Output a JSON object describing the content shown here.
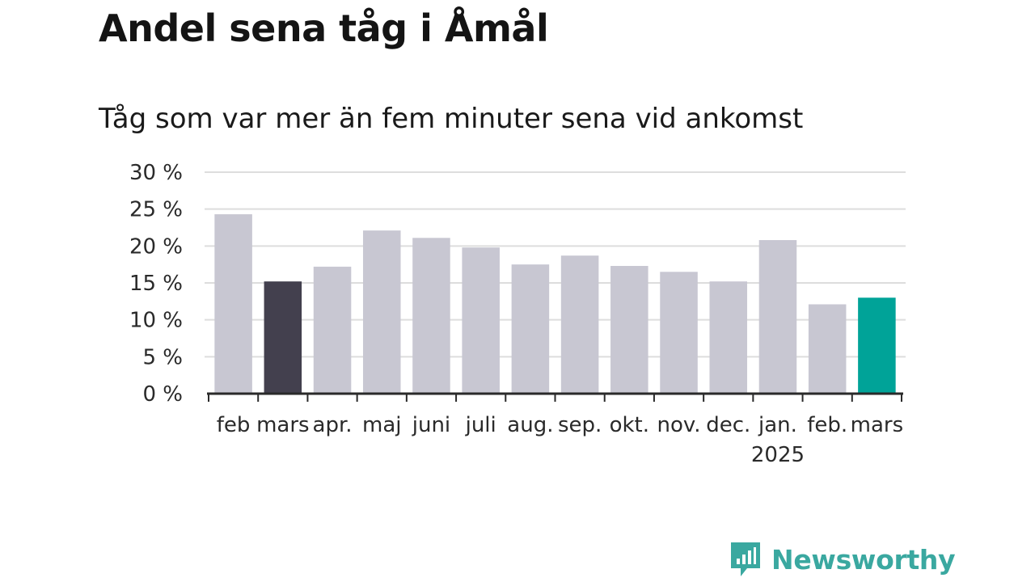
{
  "title": "Andel sena tåg i Åmål",
  "subtitle": "Tåg som var mer än fem minuter sena vid ankomst",
  "brand": {
    "name": "Newsworthy",
    "icon": "newsworthy-logo-icon",
    "color": "#3aa8a0"
  },
  "chart_data": {
    "type": "bar",
    "y_ticks": [
      "0 %",
      "5 %",
      "10 %",
      "15 %",
      "20 %",
      "25 %",
      "30 %"
    ],
    "ylim": [
      0,
      30
    ],
    "grid": true,
    "categories": [
      "feb",
      "mars",
      "apr.",
      "maj",
      "juni",
      "juli",
      "aug.",
      "sep.",
      "okt.",
      "nov.",
      "dec.",
      "jan.",
      "feb.",
      "mars"
    ],
    "year_label": "2025",
    "values": [
      24.3,
      15.2,
      17.2,
      22.1,
      21.1,
      19.8,
      17.5,
      18.7,
      17.3,
      16.5,
      15.2,
      20.8,
      12.1,
      13.0
    ],
    "colors": {
      "default": "#c8c7d2",
      "highlight_previous": "#43404e",
      "highlight_current": "#00a398",
      "axis": "#2a2a2a",
      "grid": "#dddddd"
    },
    "highlight_previous_index": 1,
    "highlight_current_index": 13
  }
}
